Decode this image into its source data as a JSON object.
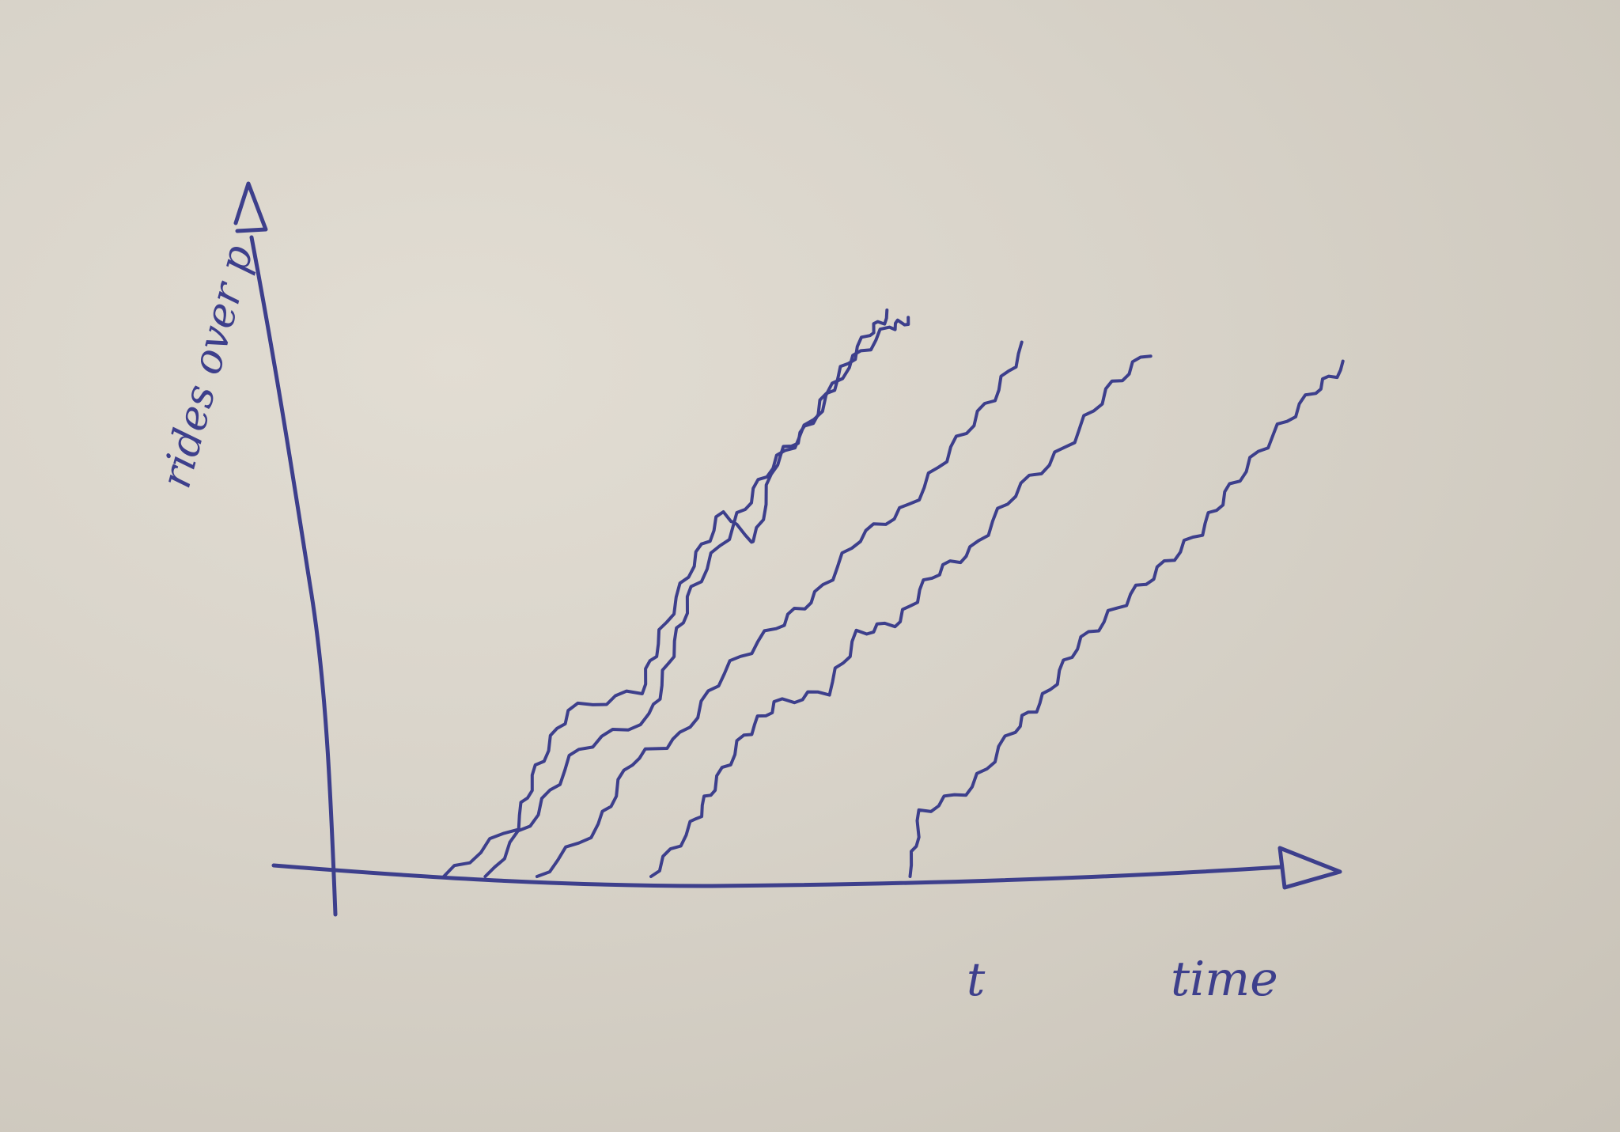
{
  "chart_data": {
    "type": "line",
    "title": "",
    "xlabel": "time",
    "ylabel": "rides over p",
    "x_annotation": "t",
    "xlim": [
      0,
      1
    ],
    "ylim": [
      0,
      1
    ],
    "grid": false,
    "legend": "none",
    "ink_color": "#3d3f8c",
    "paper_color": "#d6d1c7",
    "series": [
      {
        "points": [
          [
            0.1,
            0.0
          ],
          [
            0.17,
            0.08
          ],
          [
            0.19,
            0.17
          ],
          [
            0.22,
            0.26
          ],
          [
            0.29,
            0.29
          ],
          [
            0.31,
            0.38
          ],
          [
            0.34,
            0.49
          ],
          [
            0.37,
            0.57
          ],
          [
            0.4,
            0.52
          ],
          [
            0.42,
            0.65
          ],
          [
            0.45,
            0.7
          ],
          [
            0.48,
            0.78
          ],
          [
            0.51,
            0.85
          ],
          [
            0.53,
            0.88
          ]
        ]
      },
      {
        "points": [
          [
            0.14,
            0.0
          ],
          [
            0.19,
            0.1
          ],
          [
            0.23,
            0.2
          ],
          [
            0.3,
            0.25
          ],
          [
            0.32,
            0.35
          ],
          [
            0.34,
            0.45
          ],
          [
            0.38,
            0.55
          ],
          [
            0.41,
            0.63
          ],
          [
            0.45,
            0.7
          ],
          [
            0.49,
            0.8
          ],
          [
            0.53,
            0.86
          ],
          [
            0.55,
            0.87
          ]
        ]
      },
      {
        "points": [
          [
            0.19,
            0.0
          ],
          [
            0.25,
            0.08
          ],
          [
            0.28,
            0.18
          ],
          [
            0.33,
            0.22
          ],
          [
            0.37,
            0.32
          ],
          [
            0.42,
            0.39
          ],
          [
            0.46,
            0.44
          ],
          [
            0.5,
            0.53
          ],
          [
            0.55,
            0.58
          ],
          [
            0.59,
            0.67
          ],
          [
            0.63,
            0.75
          ],
          [
            0.66,
            0.83
          ]
        ]
      },
      {
        "points": [
          [
            0.3,
            0.0
          ],
          [
            0.34,
            0.08
          ],
          [
            0.36,
            0.14
          ],
          [
            0.39,
            0.22
          ],
          [
            0.42,
            0.27
          ],
          [
            0.47,
            0.29
          ],
          [
            0.5,
            0.38
          ],
          [
            0.54,
            0.4
          ],
          [
            0.57,
            0.47
          ],
          [
            0.61,
            0.51
          ],
          [
            0.65,
            0.6
          ],
          [
            0.7,
            0.67
          ],
          [
            0.74,
            0.76
          ],
          [
            0.78,
            0.82
          ]
        ]
      },
      {
        "points": [
          [
            0.55,
            0.0
          ],
          [
            0.56,
            0.1
          ],
          [
            0.61,
            0.14
          ],
          [
            0.65,
            0.23
          ],
          [
            0.68,
            0.28
          ],
          [
            0.71,
            0.36
          ],
          [
            0.75,
            0.42
          ],
          [
            0.79,
            0.48
          ],
          [
            0.83,
            0.54
          ],
          [
            0.86,
            0.61
          ],
          [
            0.9,
            0.69
          ],
          [
            0.94,
            0.76
          ],
          [
            0.97,
            0.8
          ]
        ]
      }
    ]
  }
}
